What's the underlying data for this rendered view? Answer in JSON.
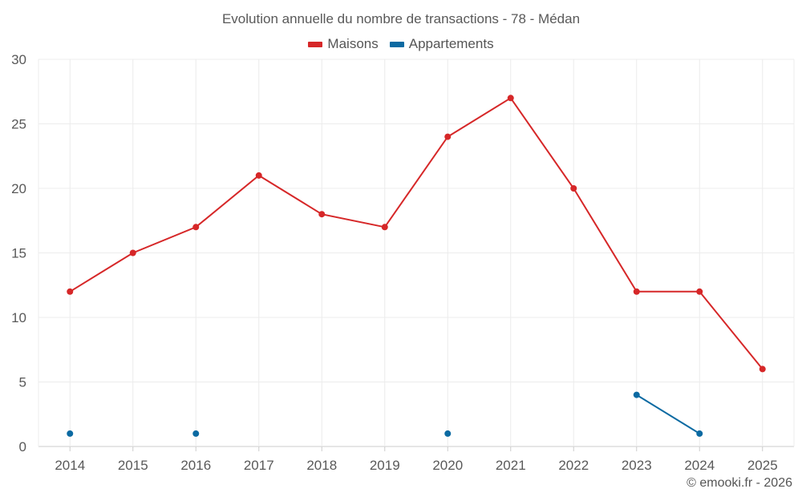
{
  "chart_data": {
    "type": "line",
    "title": "Evolution annuelle du nombre de transactions - 78 - Médan",
    "categories": [
      "2014",
      "2015",
      "2016",
      "2017",
      "2018",
      "2019",
      "2020",
      "2021",
      "2022",
      "2023",
      "2024",
      "2025"
    ],
    "ylim": [
      0,
      30
    ],
    "yticks": [
      0,
      5,
      10,
      15,
      20,
      25,
      30
    ],
    "xlabel": "",
    "ylabel": "",
    "grid": true,
    "legend_position": "top-center",
    "series": [
      {
        "name": "Maisons",
        "color": "#d62728",
        "values": [
          12,
          15,
          17,
          21,
          18,
          17,
          24,
          27,
          20,
          12,
          12,
          6
        ]
      },
      {
        "name": "Appartements",
        "color": "#0b6aa2",
        "values": [
          1,
          null,
          1,
          null,
          null,
          null,
          1,
          null,
          null,
          4,
          1,
          null
        ]
      }
    ]
  },
  "credit": "© emooki.fr - 2026"
}
